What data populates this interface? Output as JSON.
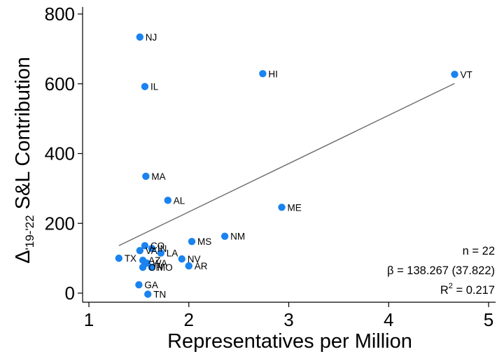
{
  "chart_data": {
    "type": "scatter",
    "xlabel": "Representatives per Million",
    "ylabel": {
      "delta": "Δ",
      "sub": "'19-'22",
      "rest": " S&L Contribution"
    },
    "xlim": [
      1,
      5
    ],
    "ylim": [
      -10,
      820
    ],
    "xticks": [
      "1",
      "2",
      "3",
      "4",
      "5"
    ],
    "yticks": [
      "0",
      "200",
      "400",
      "600",
      "800"
    ],
    "grid": false,
    "point_color": "#1a83f0",
    "fit_color": "#6b6b6b",
    "points": [
      {
        "label": "NJ",
        "x": 1.51,
        "y": 734
      },
      {
        "label": "HI",
        "x": 2.74,
        "y": 629
      },
      {
        "label": "VT",
        "x": 4.66,
        "y": 627
      },
      {
        "label": "IL",
        "x": 1.56,
        "y": 592
      },
      {
        "label": "MA",
        "x": 1.57,
        "y": 335
      },
      {
        "label": "AL",
        "x": 1.79,
        "y": 266
      },
      {
        "label": "ME",
        "x": 2.93,
        "y": 246
      },
      {
        "label": "NM",
        "x": 2.36,
        "y": 163
      },
      {
        "label": "MS",
        "x": 2.03,
        "y": 148
      },
      {
        "label": "CO",
        "x": 1.56,
        "y": 136
      },
      {
        "label": "IN",
        "x": 1.63,
        "y": 128
      },
      {
        "label": "VA",
        "x": 1.51,
        "y": 122
      },
      {
        "label": "LA",
        "x": 1.72,
        "y": 115
      },
      {
        "label": "TX",
        "x": 1.3,
        "y": 100
      },
      {
        "label": "NV",
        "x": 1.93,
        "y": 98
      },
      {
        "label": "AZ",
        "x": 1.54,
        "y": 94
      },
      {
        "label": "WA",
        "x": 1.58,
        "y": 86
      },
      {
        "label": "AR",
        "x": 2.0,
        "y": 78
      },
      {
        "label": "OH",
        "x": 1.54,
        "y": 74
      },
      {
        "label": "MO",
        "x": 1.63,
        "y": 74
      },
      {
        "label": "GA",
        "x": 1.5,
        "y": 24
      },
      {
        "label": "TN",
        "x": 1.59,
        "y": -3
      }
    ],
    "fit_line": {
      "x": [
        1.3,
        4.66
      ],
      "y": [
        136,
        601
      ]
    },
    "annotations": {
      "n": "n = 22",
      "beta": "β = 138.267 (37.822)",
      "r2_prefix": "R",
      "r2_exp": "2",
      "r2_value": " = 0.217"
    }
  }
}
